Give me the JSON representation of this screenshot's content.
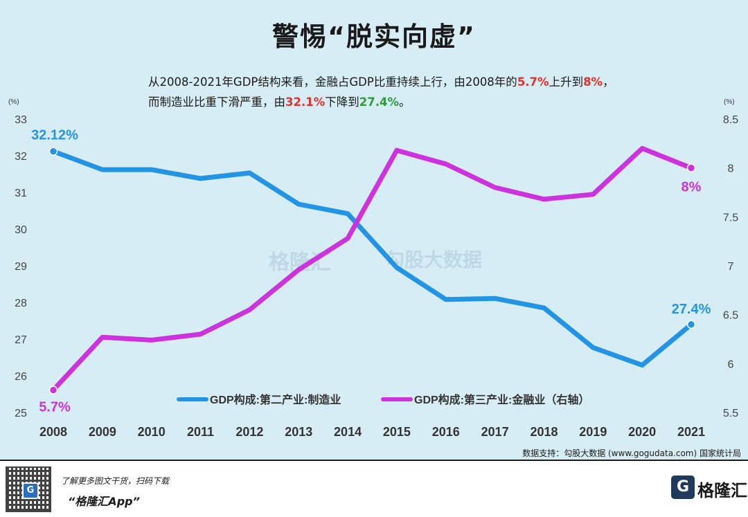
{
  "title": "警惕“脱实向虚”",
  "subtitle": {
    "line1_prefix": "从2008-2021年GDP结构来看，金融占GDP比重持续上行，由2008年的",
    "line1_v1": "5.7%",
    "line1_mid": "上升到",
    "line1_v2": "8%",
    "line1_suffix": "，",
    "line2_prefix": "而制造业比重下滑严重，由",
    "line2_v1": "32.1%",
    "line2_mid": "下降到",
    "line2_v2": "27.4%",
    "line2_suffix": "。"
  },
  "colors": {
    "manufacturing": "#2394e3",
    "finance": "#cc33dd",
    "red": "#e8302a",
    "green": "#2e9a3a"
  },
  "chart_data": {
    "type": "line",
    "categories": [
      "2008",
      "2009",
      "2010",
      "2011",
      "2012",
      "2013",
      "2014",
      "2015",
      "2016",
      "2017",
      "2018",
      "2019",
      "2020",
      "2021"
    ],
    "y_left": {
      "unit": "(%)",
      "min": 25,
      "max": 33,
      "ticks": [
        "25",
        "26",
        "27",
        "28",
        "29",
        "30",
        "31",
        "32",
        "33"
      ]
    },
    "y_right": {
      "unit": "(%)",
      "min": 5.5,
      "max": 8.5,
      "ticks": [
        "5.5",
        "6",
        "6.5",
        "7",
        "7.5",
        "8",
        "8.5"
      ]
    },
    "series": [
      {
        "name": "GDP构成:第二产业:制造业",
        "axis": "left",
        "values": [
          32.12,
          31.62,
          31.62,
          31.38,
          31.53,
          30.68,
          30.42,
          28.95,
          28.08,
          28.11,
          27.85,
          26.77,
          26.29,
          27.4
        ]
      },
      {
        "name": "GDP构成:第三产业:金融业（右轴）",
        "axis": "right",
        "values": [
          5.73,
          6.27,
          6.24,
          6.3,
          6.55,
          6.96,
          7.28,
          8.18,
          8.04,
          7.8,
          7.68,
          7.73,
          8.2,
          8.0
        ]
      }
    ],
    "annotations": [
      {
        "text": "32.12%",
        "series": 0,
        "index": 0
      },
      {
        "text": "27.4%",
        "series": 0,
        "index": 13
      },
      {
        "text": "5.7%",
        "series": 1,
        "index": 0
      },
      {
        "text": "8%",
        "series": 1,
        "index": 13
      }
    ],
    "legend_position": "bottom"
  },
  "watermark": {
    "left": "格隆汇",
    "right": "勾股大数据"
  },
  "source": "数据支持：勾股大数据  (www.gogudata.com) 国家统计局",
  "footer": {
    "caption": "了解更多图文干货，扫码下载",
    "app_name": "“格隆汇App”",
    "logo_text": "格隆汇",
    "logo_icon": "G"
  }
}
